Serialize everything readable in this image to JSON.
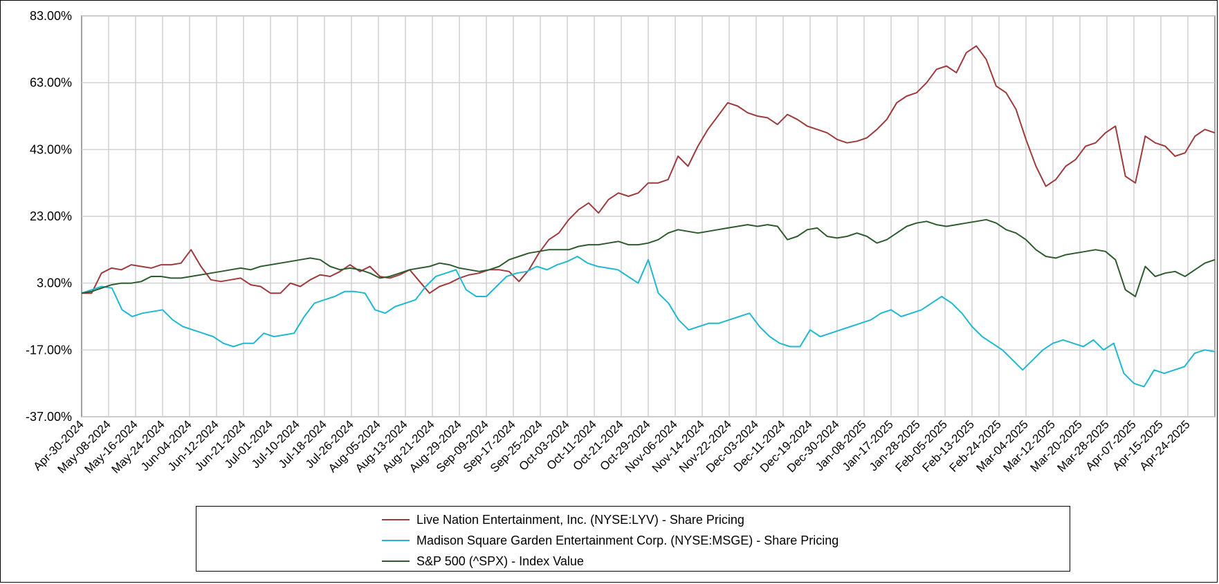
{
  "chart_data": {
    "type": "line",
    "title": "",
    "xlabel": "",
    "ylabel": "",
    "ylim": [
      -37,
      83
    ],
    "y_ticks": [
      "83.00%",
      "63.00%",
      "43.00%",
      "23.00%",
      "3.00%",
      "-17.00%",
      "-37.00%"
    ],
    "x_tick_labels": [
      "Apr-30-2024",
      "May-08-2024",
      "May-16-2024",
      "May-24-2024",
      "Jun-04-2024",
      "Jun-12-2024",
      "Jun-21-2024",
      "Jul-01-2024",
      "Jul-10-2024",
      "Jul-18-2024",
      "Jul-26-2024",
      "Aug-05-2024",
      "Aug-13-2024",
      "Aug-21-2024",
      "Aug-29-2024",
      "Sep-09-2024",
      "Sep-17-2024",
      "Sep-25-2024",
      "Oct-03-2024",
      "Oct-11-2024",
      "Oct-21-2024",
      "Oct-29-2024",
      "Nov-06-2024",
      "Nov-14-2024",
      "Nov-22-2024",
      "Dec-03-2024",
      "Dec-11-2024",
      "Dec-19-2024",
      "Dec-30-2024",
      "Jan-08-2025",
      "Jan-17-2025",
      "Jan-28-2025",
      "Feb-05-2025",
      "Feb-13-2025",
      "Feb-24-2025",
      "Mar-04-2025",
      "Mar-12-2025",
      "Mar-20-2025",
      "Mar-28-2025",
      "Apr-07-2025",
      "Apr-15-2025",
      "Apr-24-2025"
    ],
    "grid": true,
    "legend_position": "bottom",
    "series": [
      {
        "name": "Live Nation Entertainment, Inc. (NYSE:LYV) - Share Pricing",
        "color": "#a0393b",
        "values": [
          0.0,
          0.0,
          6.0,
          7.5,
          7.0,
          8.5,
          8.0,
          7.5,
          8.5,
          8.5,
          9.0,
          13.0,
          8.0,
          4.0,
          3.5,
          4.0,
          4.5,
          2.5,
          2.0,
          0.0,
          0.0,
          3.0,
          2.0,
          4.0,
          5.5,
          5.0,
          6.5,
          8.5,
          6.5,
          8.0,
          5.0,
          4.5,
          5.5,
          7.0,
          3.5,
          0.0,
          2.0,
          3.0,
          4.5,
          5.5,
          6.0,
          7.0,
          7.0,
          6.5,
          3.5,
          7.0,
          12.0,
          16.0,
          18.0,
          22.0,
          25.0,
          27.0,
          24.0,
          28.0,
          30.0,
          29.0,
          30.0,
          33.0,
          33.0,
          34.0,
          41.0,
          38.0,
          44.0,
          49.0,
          53.0,
          57.0,
          56.0,
          54.0,
          53.0,
          52.5,
          50.5,
          53.5,
          52.0,
          50.0,
          49.0,
          48.0,
          46.0,
          45.0,
          45.5,
          46.5,
          49.0,
          52.0,
          57.0,
          59.0,
          60.0,
          63.0,
          67.0,
          68.0,
          66.0,
          72.0,
          74.0,
          70.0,
          62.0,
          60.0,
          55.0,
          46.0,
          38.0,
          32.0,
          34.0,
          38.0,
          40.0,
          44.0,
          45.0,
          48.0,
          50.0,
          35.0,
          33.0,
          47.0,
          45.0,
          44.0,
          41.0,
          42.0,
          47.0,
          49.0,
          48.0
        ]
      },
      {
        "name": "Madison Square Garden Entertainment Corp. (NYSE:MSGE) - Share Pricing",
        "color": "#1fb8d0",
        "values": [
          0.0,
          1.0,
          2.0,
          1.5,
          -5.0,
          -7.0,
          -6.0,
          -5.5,
          -5.0,
          -8.0,
          -10.0,
          -11.0,
          -12.0,
          -13.0,
          -15.0,
          -16.0,
          -15.0,
          -15.0,
          -12.0,
          -13.0,
          -12.5,
          -12.0,
          -7.0,
          -3.0,
          -2.0,
          -1.0,
          0.5,
          0.5,
          0.0,
          -5.0,
          -6.0,
          -4.0,
          -3.0,
          -2.0,
          2.0,
          5.0,
          6.0,
          7.0,
          1.0,
          -1.0,
          -1.0,
          2.0,
          5.0,
          6.0,
          6.5,
          8.0,
          7.0,
          8.5,
          9.5,
          11.0,
          9.0,
          8.0,
          7.5,
          7.0,
          5.0,
          3.0,
          10.0,
          0.0,
          -3.0,
          -8.0,
          -11.0,
          -10.0,
          -9.0,
          -9.0,
          -8.0,
          -7.0,
          -6.0,
          -10.0,
          -13.0,
          -15.0,
          -16.0,
          -16.0,
          -11.0,
          -13.0,
          -12.0,
          -11.0,
          -10.0,
          -9.0,
          -8.0,
          -6.0,
          -5.0,
          -7.0,
          -6.0,
          -5.0,
          -3.0,
          -1.0,
          -3.0,
          -6.0,
          -10.0,
          -13.0,
          -15.0,
          -17.0,
          -20.0,
          -23.0,
          -20.0,
          -17.0,
          -15.0,
          -14.0,
          -15.0,
          -16.0,
          -14.0,
          -17.0,
          -15.0,
          -24.0,
          -27.0,
          -28.0,
          -23.0,
          -24.0,
          -23.0,
          -22.0,
          -18.0,
          -17.0,
          -17.5
        ]
      },
      {
        "name": "S&P 500 (^SPX) - Index Value",
        "color": "#2e5b2e",
        "values": [
          0.0,
          0.5,
          1.5,
          2.5,
          3.0,
          3.0,
          3.5,
          5.0,
          5.0,
          4.5,
          4.5,
          5.0,
          5.5,
          6.0,
          6.5,
          7.0,
          7.5,
          7.0,
          8.0,
          8.5,
          9.0,
          9.5,
          10.0,
          10.5,
          10.0,
          8.0,
          7.0,
          7.5,
          7.0,
          6.0,
          4.5,
          5.0,
          6.0,
          7.0,
          7.5,
          8.0,
          9.0,
          8.5,
          7.5,
          7.0,
          6.5,
          7.0,
          8.0,
          10.0,
          11.0,
          12.0,
          12.5,
          13.0,
          13.0,
          13.0,
          14.0,
          14.5,
          14.5,
          15.0,
          15.5,
          14.5,
          14.5,
          15.0,
          16.0,
          18.0,
          19.0,
          18.5,
          18.0,
          18.5,
          19.0,
          19.5,
          20.0,
          20.5,
          20.0,
          20.5,
          20.0,
          16.0,
          17.0,
          19.0,
          19.5,
          17.0,
          16.5,
          17.0,
          18.0,
          17.0,
          15.0,
          16.0,
          18.0,
          20.0,
          21.0,
          21.5,
          20.5,
          20.0,
          20.5,
          21.0,
          21.5,
          22.0,
          21.0,
          19.0,
          18.0,
          16.0,
          13.0,
          11.0,
          10.5,
          11.5,
          12.0,
          12.5,
          13.0,
          12.5,
          10.0,
          1.0,
          -1.0,
          8.0,
          5.0,
          6.0,
          6.5,
          5.0,
          7.0,
          9.0,
          10.0
        ]
      }
    ]
  }
}
